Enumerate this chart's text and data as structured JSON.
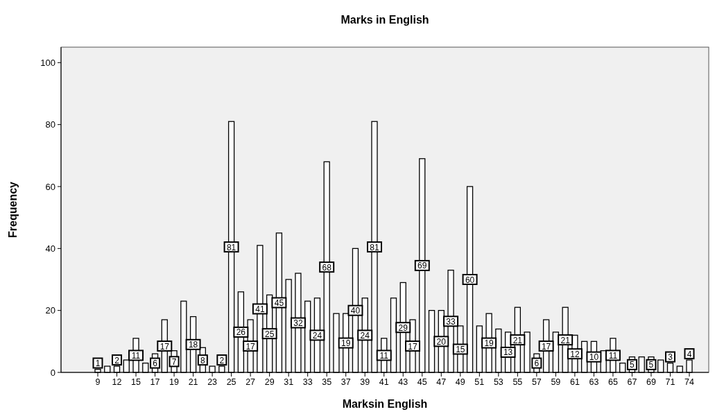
{
  "chart_data": {
    "type": "bar",
    "title": "Marks in English",
    "xlabel": "Marksin English",
    "ylabel": "Frequency",
    "categories": [
      "9",
      null,
      "12",
      null,
      "15",
      null,
      "17",
      null,
      "19",
      null,
      "21",
      null,
      "23",
      null,
      "25",
      null,
      "27",
      null,
      "29",
      null,
      "31",
      null,
      "33",
      null,
      "35",
      null,
      "37",
      null,
      "39",
      null,
      "41",
      null,
      "43",
      null,
      "45",
      null,
      "47",
      null,
      "49",
      null,
      "51",
      null,
      "53",
      null,
      "55",
      null,
      "57",
      null,
      "59",
      null,
      "61",
      null,
      "63",
      null,
      "65",
      null,
      "67",
      null,
      "69",
      null,
      "71",
      null,
      "74"
    ],
    "values": [
      1,
      2,
      2,
      4,
      11,
      3,
      6,
      17,
      7,
      23,
      18,
      8,
      2,
      2,
      81,
      26,
      17,
      41,
      25,
      45,
      30,
      32,
      23,
      24,
      68,
      19,
      19,
      40,
      24,
      81,
      11,
      24,
      29,
      17,
      69,
      20,
      20,
      33,
      15,
      60,
      15,
      19,
      14,
      13,
      21,
      13,
      6,
      17,
      13,
      21,
      12,
      10,
      10,
      7,
      11,
      3,
      5,
      5,
      5,
      4,
      3,
      2,
      4
    ],
    "value_labels": [
      "1",
      null,
      "2",
      null,
      "11",
      null,
      "6",
      "17",
      "7",
      null,
      "18",
      "8",
      null,
      "2",
      "81",
      "26",
      "17",
      "41",
      "25",
      "45",
      null,
      "32",
      null,
      "24",
      "68",
      null,
      "19",
      "40",
      "24",
      "81",
      "11",
      null,
      "29",
      "17",
      "69",
      null,
      "20",
      "33",
      "15",
      "60",
      null,
      "19",
      null,
      "13",
      "21",
      null,
      "6",
      "17",
      null,
      "21",
      "12",
      null,
      "10",
      null,
      "11",
      null,
      "5",
      null,
      "5",
      null,
      "3",
      null,
      "4"
    ],
    "color": "#ffffff",
    "ylim": [
      0,
      105
    ],
    "yticks": [
      0,
      20,
      40,
      60,
      80,
      100
    ],
    "grid": false
  }
}
